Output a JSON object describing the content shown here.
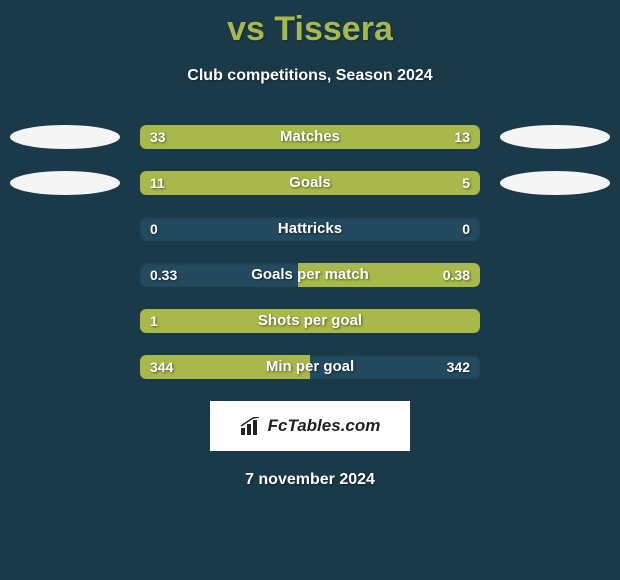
{
  "title": "vs Tissera",
  "subtitle": "Club competitions, Season 2024",
  "footer_date": "7 november 2024",
  "logo_text": "FcTables.com",
  "colors": {
    "background": "#1a3a4a",
    "accent": "#a8b84a",
    "bar_fill": "#a8b84a",
    "bar_track": "#234a5e",
    "ellipse": "#f5f5f5",
    "text": "#ffffff"
  },
  "stats": [
    {
      "label": "Matches",
      "left_val": "33",
      "right_val": "13",
      "left_pct": 71.7,
      "right_pct": 28.3,
      "fill_mode": "split",
      "show_ellipses": true
    },
    {
      "label": "Goals",
      "left_val": "11",
      "right_val": "5",
      "left_pct": 68.7,
      "right_pct": 31.3,
      "fill_mode": "split",
      "show_ellipses": true
    },
    {
      "label": "Hattricks",
      "left_val": "0",
      "right_val": "0",
      "left_pct": 0,
      "right_pct": 0,
      "fill_mode": "empty",
      "show_ellipses": false
    },
    {
      "label": "Goals per match",
      "left_val": "0.33",
      "right_val": "0.38",
      "left_pct": 46.5,
      "right_pct": 53.5,
      "fill_mode": "right",
      "show_ellipses": false
    },
    {
      "label": "Shots per goal",
      "left_val": "1",
      "right_val": "",
      "left_pct": 100,
      "right_pct": 0,
      "fill_mode": "full",
      "show_ellipses": false
    },
    {
      "label": "Min per goal",
      "left_val": "344",
      "right_val": "342",
      "left_pct": 50.1,
      "right_pct": 49.9,
      "fill_mode": "left",
      "show_ellipses": false
    }
  ]
}
